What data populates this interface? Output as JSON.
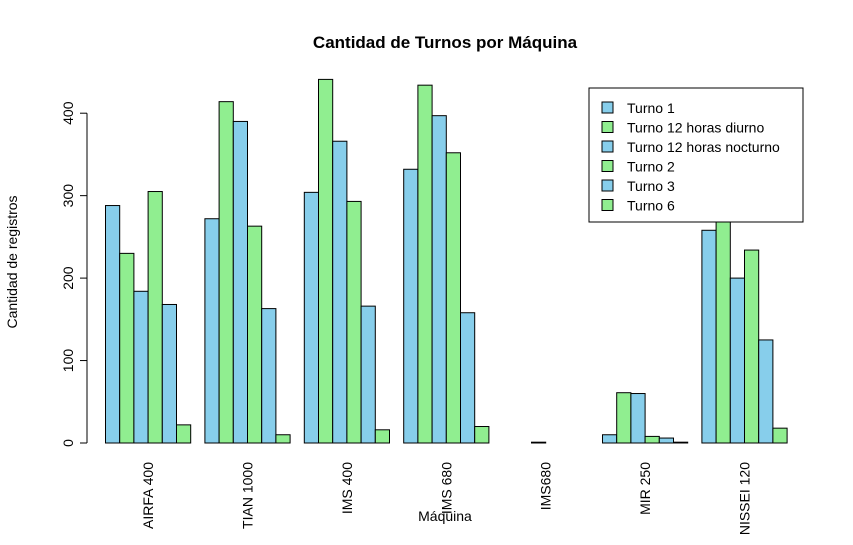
{
  "chart_data": {
    "type": "bar",
    "title": "Cantidad de Turnos por Máquina",
    "xlabel": "Máquina",
    "ylabel": "Cantidad de registros",
    "ylim": [
      0,
      450
    ],
    "yticks": [
      0,
      100,
      200,
      300,
      400
    ],
    "grid": false,
    "legend_position": "top-right",
    "categories": [
      "AIRFA 400",
      "TIAN 1000",
      "IMS 400",
      "IMS 680",
      "IMS680",
      "MIR 250",
      "NISSEI 120"
    ],
    "series": [
      {
        "name": "Turno 1",
        "color": "#87CEEB",
        "values": [
          288,
          272,
          304,
          332,
          0,
          10,
          258
        ]
      },
      {
        "name": "Turno 12 horas diurno",
        "color": "#90EE90",
        "values": [
          230,
          414,
          441,
          434,
          0,
          61,
          270
        ]
      },
      {
        "name": "Turno 12 horas nocturno",
        "color": "#87CEEB",
        "values": [
          184,
          390,
          366,
          397,
          1,
          60,
          200
        ]
      },
      {
        "name": "Turno 2",
        "color": "#90EE90",
        "values": [
          305,
          263,
          293,
          352,
          0,
          8,
          234
        ]
      },
      {
        "name": "Turno 3",
        "color": "#87CEEB",
        "values": [
          168,
          163,
          166,
          158,
          0,
          6,
          125
        ]
      },
      {
        "name": "Turno 6",
        "color": "#90EE90",
        "values": [
          22,
          10,
          16,
          20,
          0,
          1,
          18
        ]
      }
    ]
  }
}
